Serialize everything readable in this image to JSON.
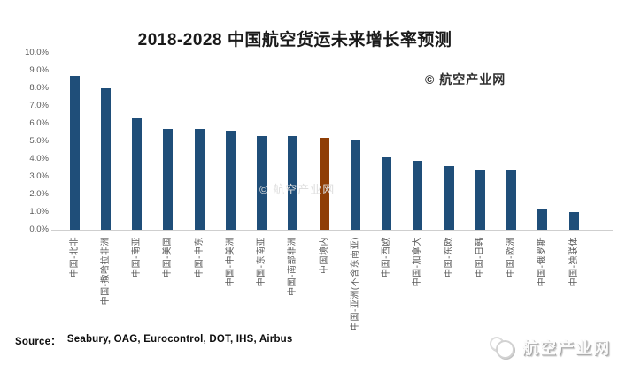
{
  "title": "2018-2028 中国航空货运未来增长率预测",
  "copyright": "© 航空产业网",
  "watermark": "© 航空产业网",
  "source": {
    "label": "Source：",
    "agencies": "Seabury, OAG, Eurocontrol, DOT, IHS, Airbus"
  },
  "brand": {
    "name": "航空产业网",
    "logo_icon": "overlapping-circles-logo"
  },
  "colors": {
    "bar": "#1F4E79",
    "highlight_bar": "#8F3E06",
    "axis_line": "#CFCFCF",
    "tick_text": "#595959",
    "title_text": "#1A1A1A"
  },
  "chart_data": {
    "type": "bar",
    "title": "2018-2028 中国航空货运未来增长率预测",
    "xlabel": "",
    "ylabel": "",
    "ylim": [
      0,
      10
    ],
    "ytick_step": 1,
    "ytick_format": "0.0%",
    "yticks": [
      "10.0%",
      "9.0%",
      "8.0%",
      "7.0%",
      "6.0%",
      "5.0%",
      "4.0%",
      "3.0%",
      "2.0%",
      "1.0%",
      "0.0%"
    ],
    "grid": false,
    "legend": "none",
    "categories": [
      "中国-北非",
      "中国-撒哈拉非洲",
      "中国-南亚",
      "中国-美国",
      "中国-中东",
      "中国-中美洲",
      "中国-东南亚",
      "中国-南部非洲",
      "中国境内",
      "中国-亚洲(不含东南亚)",
      "中国-西欧",
      "中国-加拿大",
      "中国-东欧",
      "中国-日韩",
      "中国-欧洲",
      "中国-俄罗斯",
      "中国-独联体"
    ],
    "values": [
      8.7,
      8.0,
      6.3,
      5.7,
      5.7,
      5.6,
      5.3,
      5.3,
      5.2,
      5.1,
      4.1,
      3.9,
      3.6,
      3.4,
      3.4,
      1.2,
      1.0
    ],
    "highlight_index": 8,
    "highlight_category": "中国境内"
  }
}
